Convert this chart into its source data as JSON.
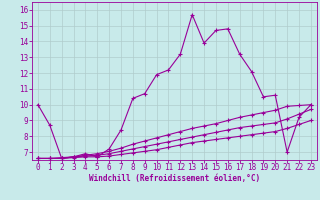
{
  "xlabel": "Windchill (Refroidissement éolien,°C)",
  "background_color": "#c8eaea",
  "line_color": "#990099",
  "grid_color": "#b0cccc",
  "xlim": [
    -0.5,
    23.5
  ],
  "ylim": [
    6.5,
    16.5
  ],
  "yticks": [
    7,
    8,
    9,
    10,
    11,
    12,
    13,
    14,
    15,
    16
  ],
  "xticks": [
    0,
    1,
    2,
    3,
    4,
    5,
    6,
    7,
    8,
    9,
    10,
    11,
    12,
    13,
    14,
    15,
    16,
    17,
    18,
    19,
    20,
    21,
    22,
    23
  ],
  "line1_x": [
    0,
    1,
    2,
    3,
    4,
    5,
    6,
    7,
    8,
    9,
    10,
    11,
    12,
    13,
    14,
    15,
    16,
    17,
    18,
    19,
    20,
    21,
    22,
    23
  ],
  "line1_y": [
    10.0,
    8.7,
    6.6,
    6.7,
    6.9,
    6.7,
    7.2,
    8.4,
    10.4,
    10.7,
    11.9,
    12.2,
    13.2,
    15.7,
    13.9,
    14.7,
    14.8,
    13.2,
    12.1,
    10.5,
    10.6,
    7.0,
    9.2,
    10.0
  ],
  "line2_x": [
    0,
    1,
    2,
    3,
    4,
    5,
    6,
    7,
    8,
    9,
    10,
    11,
    12,
    13,
    14,
    15,
    16,
    17,
    18,
    19,
    20,
    21,
    22,
    23
  ],
  "line2_y": [
    6.6,
    6.6,
    6.6,
    6.65,
    6.7,
    6.7,
    6.75,
    6.85,
    6.95,
    7.05,
    7.15,
    7.3,
    7.45,
    7.6,
    7.7,
    7.8,
    7.9,
    8.0,
    8.1,
    8.2,
    8.3,
    8.5,
    8.75,
    9.0
  ],
  "line3_x": [
    0,
    1,
    2,
    3,
    4,
    5,
    6,
    7,
    8,
    9,
    10,
    11,
    12,
    13,
    14,
    15,
    16,
    17,
    18,
    19,
    20,
    21,
    22,
    23
  ],
  "line3_y": [
    6.6,
    6.6,
    6.6,
    6.7,
    6.75,
    6.8,
    6.9,
    7.05,
    7.2,
    7.35,
    7.5,
    7.65,
    7.8,
    7.95,
    8.1,
    8.25,
    8.4,
    8.55,
    8.65,
    8.75,
    8.85,
    9.1,
    9.4,
    9.7
  ],
  "line4_x": [
    0,
    1,
    2,
    3,
    4,
    5,
    6,
    7,
    8,
    9,
    10,
    11,
    12,
    13,
    14,
    15,
    16,
    17,
    18,
    19,
    20,
    21,
    22,
    23
  ],
  "line4_y": [
    6.6,
    6.6,
    6.65,
    6.7,
    6.8,
    6.9,
    7.05,
    7.25,
    7.5,
    7.7,
    7.9,
    8.1,
    8.3,
    8.5,
    8.65,
    8.8,
    9.0,
    9.2,
    9.35,
    9.5,
    9.65,
    9.9,
    9.95,
    10.0
  ],
  "marker": "+",
  "markersize": 3,
  "linewidth": 0.8,
  "tick_fontsize": 5.5,
  "xlabel_fontsize": 5.5
}
